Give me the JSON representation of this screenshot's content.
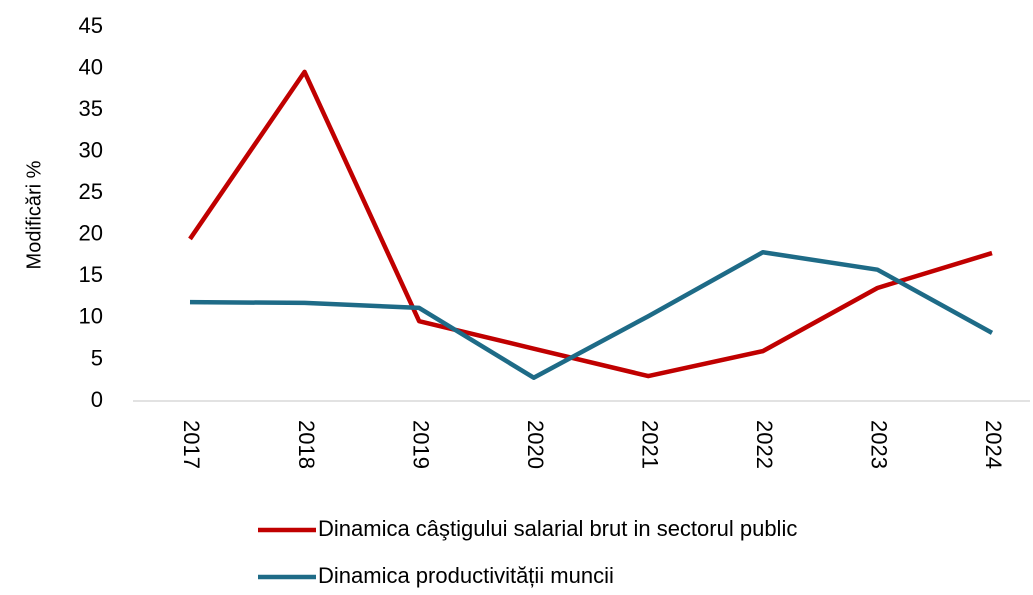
{
  "chart_data": {
    "type": "line",
    "y_label": "Modificări %",
    "categories": [
      "2017",
      "2018",
      "2019",
      "2020",
      "2021",
      "2022",
      "2023",
      "2024"
    ],
    "series": [
      {
        "name": "Dinamica câştigului salarial brut in sectorul public",
        "color": "#c00000",
        "values": [
          19.5,
          39.6,
          9.6,
          6.3,
          3.0,
          6.0,
          13.6,
          17.8
        ]
      },
      {
        "name": "Dinamica productivității muncii",
        "color": "#1e6b87",
        "values": [
          11.9,
          11.8,
          11.2,
          2.8,
          10.2,
          17.9,
          15.8,
          8.2
        ]
      }
    ],
    "ylim": [
      0,
      45
    ],
    "yticks": [
      0,
      5,
      10,
      15,
      20,
      25,
      30,
      35,
      40,
      45
    ],
    "grid": false,
    "legend": "bottom"
  }
}
